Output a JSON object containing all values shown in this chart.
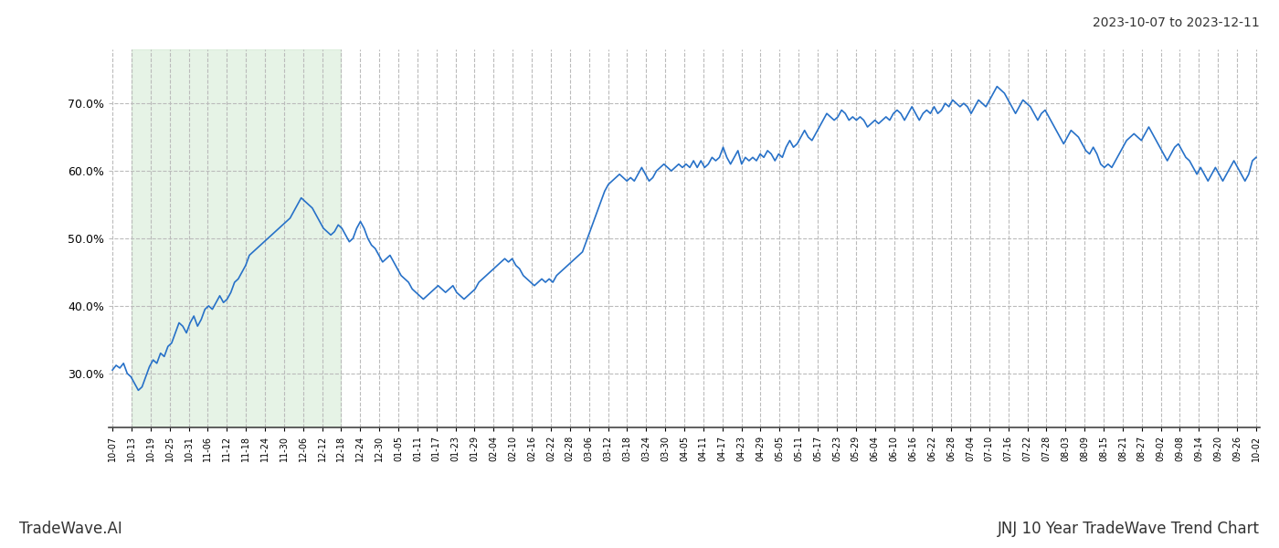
{
  "title_top_right": "2023-10-07 to 2023-12-11",
  "title_bottom_right": "JNJ 10 Year TradeWave Trend Chart",
  "title_bottom_left": "TradeWave.AI",
  "line_color": "#2771c8",
  "line_width": 1.2,
  "shaded_region_color": "#c8e6c9",
  "shaded_region_alpha": 0.45,
  "background_color": "#ffffff",
  "grid_color": "#bbbbbb",
  "grid_style": "--",
  "ylim": [
    22,
    78
  ],
  "yticks": [
    30.0,
    40.0,
    50.0,
    60.0,
    70.0
  ],
  "x_labels": [
    "10-07",
    "10-13",
    "10-19",
    "10-25",
    "10-31",
    "11-06",
    "11-12",
    "11-18",
    "11-24",
    "11-30",
    "12-06",
    "12-12",
    "12-18",
    "12-24",
    "12-30",
    "01-05",
    "01-11",
    "01-17",
    "01-23",
    "01-29",
    "02-04",
    "02-10",
    "02-16",
    "02-22",
    "02-28",
    "03-06",
    "03-12",
    "03-18",
    "03-24",
    "03-30",
    "04-05",
    "04-11",
    "04-17",
    "04-23",
    "04-29",
    "05-05",
    "05-11",
    "05-17",
    "05-23",
    "05-29",
    "06-04",
    "06-10",
    "06-16",
    "06-22",
    "06-28",
    "07-04",
    "07-10",
    "07-16",
    "07-22",
    "07-28",
    "08-03",
    "08-09",
    "08-15",
    "08-21",
    "08-27",
    "09-02",
    "09-08",
    "09-14",
    "09-20",
    "09-26",
    "10-02"
  ],
  "shaded_start_label": "10-13",
  "shaded_end_label": "12-18",
  "values": [
    30.5,
    31.2,
    30.8,
    31.5,
    30.0,
    29.5,
    28.5,
    27.5,
    28.0,
    29.5,
    31.0,
    32.0,
    31.5,
    33.0,
    32.5,
    34.0,
    34.5,
    36.0,
    37.5,
    37.0,
    36.0,
    37.5,
    38.5,
    37.0,
    38.0,
    39.5,
    40.0,
    39.5,
    40.5,
    41.5,
    40.5,
    41.0,
    42.0,
    43.5,
    44.0,
    45.0,
    46.0,
    47.5,
    48.0,
    48.5,
    49.0,
    49.5,
    50.0,
    50.5,
    51.0,
    51.5,
    52.0,
    52.5,
    53.0,
    54.0,
    55.0,
    56.0,
    55.5,
    55.0,
    54.5,
    53.5,
    52.5,
    51.5,
    51.0,
    50.5,
    51.0,
    52.0,
    51.5,
    50.5,
    49.5,
    50.0,
    51.5,
    52.5,
    51.5,
    50.0,
    49.0,
    48.5,
    47.5,
    46.5,
    47.0,
    47.5,
    46.5,
    45.5,
    44.5,
    44.0,
    43.5,
    42.5,
    42.0,
    41.5,
    41.0,
    41.5,
    42.0,
    42.5,
    43.0,
    42.5,
    42.0,
    42.5,
    43.0,
    42.0,
    41.5,
    41.0,
    41.5,
    42.0,
    42.5,
    43.5,
    44.0,
    44.5,
    45.0,
    45.5,
    46.0,
    46.5,
    47.0,
    46.5,
    47.0,
    46.0,
    45.5,
    44.5,
    44.0,
    43.5,
    43.0,
    43.5,
    44.0,
    43.5,
    44.0,
    43.5,
    44.5,
    45.0,
    45.5,
    46.0,
    46.5,
    47.0,
    47.5,
    48.0,
    49.5,
    51.0,
    52.5,
    54.0,
    55.5,
    57.0,
    58.0,
    58.5,
    59.0,
    59.5,
    59.0,
    58.5,
    59.0,
    58.5,
    59.5,
    60.5,
    59.5,
    58.5,
    59.0,
    60.0,
    60.5,
    61.0,
    60.5,
    60.0,
    60.5,
    61.0,
    60.5,
    61.0,
    60.5,
    61.5,
    60.5,
    61.5,
    60.5,
    61.0,
    62.0,
    61.5,
    62.0,
    63.5,
    62.0,
    61.0,
    62.0,
    63.0,
    61.0,
    62.0,
    61.5,
    62.0,
    61.5,
    62.5,
    62.0,
    63.0,
    62.5,
    61.5,
    62.5,
    62.0,
    63.5,
    64.5,
    63.5,
    64.0,
    65.0,
    66.0,
    65.0,
    64.5,
    65.5,
    66.5,
    67.5,
    68.5,
    68.0,
    67.5,
    68.0,
    69.0,
    68.5,
    67.5,
    68.0,
    67.5,
    68.0,
    67.5,
    66.5,
    67.0,
    67.5,
    67.0,
    67.5,
    68.0,
    67.5,
    68.5,
    69.0,
    68.5,
    67.5,
    68.5,
    69.5,
    68.5,
    67.5,
    68.5,
    69.0,
    68.5,
    69.5,
    68.5,
    69.0,
    70.0,
    69.5,
    70.5,
    70.0,
    69.5,
    70.0,
    69.5,
    68.5,
    69.5,
    70.5,
    70.0,
    69.5,
    70.5,
    71.5,
    72.5,
    72.0,
    71.5,
    70.5,
    69.5,
    68.5,
    69.5,
    70.5,
    70.0,
    69.5,
    68.5,
    67.5,
    68.5,
    69.0,
    68.0,
    67.0,
    66.0,
    65.0,
    64.0,
    65.0,
    66.0,
    65.5,
    65.0,
    64.0,
    63.0,
    62.5,
    63.5,
    62.5,
    61.0,
    60.5,
    61.0,
    60.5,
    61.5,
    62.5,
    63.5,
    64.5,
    65.0,
    65.5,
    65.0,
    64.5,
    65.5,
    66.5,
    65.5,
    64.5,
    63.5,
    62.5,
    61.5,
    62.5,
    63.5,
    64.0,
    63.0,
    62.0,
    61.5,
    60.5,
    59.5,
    60.5,
    59.5,
    58.5,
    59.5,
    60.5,
    59.5,
    58.5,
    59.5,
    60.5,
    61.5,
    60.5,
    59.5,
    58.5,
    59.5,
    61.5,
    62.0
  ]
}
